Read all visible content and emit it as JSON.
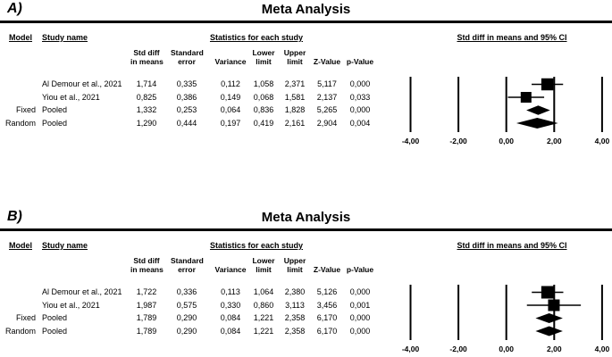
{
  "figure": {
    "background": "#ffffff",
    "ink": "#000000"
  },
  "panels": [
    {
      "label": "A)",
      "title": "Meta Analysis",
      "headers": {
        "model": "Model",
        "study": "Study name",
        "stats": "Statistics for each study",
        "plot": "Std diff in means and 95% CI"
      },
      "columns": [
        {
          "line1": "Std diff",
          "line2": "in means"
        },
        {
          "line1": "Standard",
          "line2": "error"
        },
        {
          "line1": "",
          "line2": "Variance"
        },
        {
          "line1": "Lower",
          "line2": "limit"
        },
        {
          "line1": "Upper",
          "line2": "limit"
        },
        {
          "line1": "",
          "line2": "Z-Value"
        },
        {
          "line1": "",
          "line2": "p-Value"
        }
      ],
      "rows": [
        {
          "model": "",
          "study": "Al Demour et al., 2021",
          "cells": [
            "1,714",
            "0,335",
            "0,112",
            "1,058",
            "2,371",
            "5,117",
            "0,000"
          ]
        },
        {
          "model": "",
          "study": "Yiou et al., 2021",
          "cells": [
            "0,825",
            "0,386",
            "0,149",
            "0,068",
            "1,581",
            "2,137",
            "0,033"
          ]
        },
        {
          "model": "Fixed",
          "study": "Pooled",
          "cells": [
            "1,332",
            "0,253",
            "0,064",
            "0,836",
            "1,828",
            "5,265",
            "0,000"
          ]
        },
        {
          "model": "Random",
          "study": "Pooled",
          "cells": [
            "1,290",
            "0,444",
            "0,197",
            "0,419",
            "2,161",
            "2,904",
            "0,004"
          ]
        }
      ],
      "axis_ticks": [
        "-4,00",
        "-2,00",
        "0,00",
        "2,00",
        "4,00"
      ]
    },
    {
      "label": "B)",
      "title": "Meta Analysis",
      "headers": {
        "model": "Model",
        "study": "Study name",
        "stats": "Statistics for each study",
        "plot": "Std diff in means and 95% CI"
      },
      "columns": [
        {
          "line1": "Std diff",
          "line2": "in means"
        },
        {
          "line1": "Standard",
          "line2": "error"
        },
        {
          "line1": "",
          "line2": "Variance"
        },
        {
          "line1": "Lower",
          "line2": "limit"
        },
        {
          "line1": "Upper",
          "line2": "limit"
        },
        {
          "line1": "",
          "line2": "Z-Value"
        },
        {
          "line1": "",
          "line2": "p-Value"
        }
      ],
      "rows": [
        {
          "model": "",
          "study": "Al Demour et al., 2021",
          "cells": [
            "1,722",
            "0,336",
            "0,113",
            "1,064",
            "2,380",
            "5,126",
            "0,000"
          ]
        },
        {
          "model": "",
          "study": "Yiou et al., 2021",
          "cells": [
            "1,987",
            "0,575",
            "0,330",
            "0,860",
            "3,113",
            "3,456",
            "0,001"
          ]
        },
        {
          "model": "Fixed",
          "study": "Pooled",
          "cells": [
            "1,789",
            "0,290",
            "0,084",
            "1,221",
            "2,358",
            "6,170",
            "0,000"
          ]
        },
        {
          "model": "Random",
          "study": "Pooled",
          "cells": [
            "1,789",
            "0,290",
            "0,084",
            "1,221",
            "2,358",
            "6,170",
            "0,000"
          ]
        }
      ],
      "axis_ticks": [
        "-4,00",
        "-2,00",
        "0,00",
        "2,00",
        "4,00"
      ]
    }
  ],
  "chart_data": [
    {
      "type": "scatter",
      "subtype": "forest-plot",
      "title": "Meta Analysis",
      "xlabel": "Std diff in means and 95% CI",
      "xlim": [
        -4,
        4
      ],
      "x_ticks": [
        -4,
        -2,
        0,
        2,
        4
      ],
      "grid": "vertical-lines-at-ticks",
      "points": [
        {
          "name": "Al Demour et al., 2021",
          "mean": 1.714,
          "lower": 1.058,
          "upper": 2.371,
          "z": 5.117,
          "p": 0.0,
          "marker": "square",
          "size": 13.5
        },
        {
          "name": "Yiou et al., 2021",
          "mean": 0.825,
          "lower": 0.068,
          "upper": 1.581,
          "z": 2.137,
          "p": 0.033,
          "marker": "square",
          "size": 12
        },
        {
          "name": "Fixed Pooled",
          "mean": 1.332,
          "lower": 0.836,
          "upper": 1.828,
          "z": 5.265,
          "p": 0.0,
          "marker": "diamond",
          "size": 10.5
        },
        {
          "name": "Random Pooled",
          "mean": 1.29,
          "lower": 0.419,
          "upper": 2.161,
          "z": 2.904,
          "p": 0.004,
          "marker": "diamond",
          "size": 12
        }
      ]
    },
    {
      "type": "scatter",
      "subtype": "forest-plot",
      "title": "Meta Analysis",
      "xlabel": "Std diff in means and 95% CI",
      "xlim": [
        -4,
        4
      ],
      "x_ticks": [
        -4,
        -2,
        0,
        2,
        4
      ],
      "grid": "vertical-lines-at-ticks",
      "points": [
        {
          "name": "Al Demour et al., 2021",
          "mean": 1.722,
          "lower": 1.064,
          "upper": 2.38,
          "z": 5.126,
          "p": 0.0,
          "marker": "square",
          "size": 14
        },
        {
          "name": "Yiou et al., 2021",
          "mean": 1.987,
          "lower": 0.86,
          "upper": 3.113,
          "z": 3.456,
          "p": 0.001,
          "marker": "square",
          "size": 13
        },
        {
          "name": "Fixed Pooled",
          "mean": 1.789,
          "lower": 1.221,
          "upper": 2.358,
          "z": 6.17,
          "p": 0.0,
          "marker": "diamond",
          "size": 11
        },
        {
          "name": "Random Pooled",
          "mean": 1.789,
          "lower": 1.221,
          "upper": 2.358,
          "z": 6.17,
          "p": 0.0,
          "marker": "diamond",
          "size": 11
        }
      ]
    }
  ]
}
